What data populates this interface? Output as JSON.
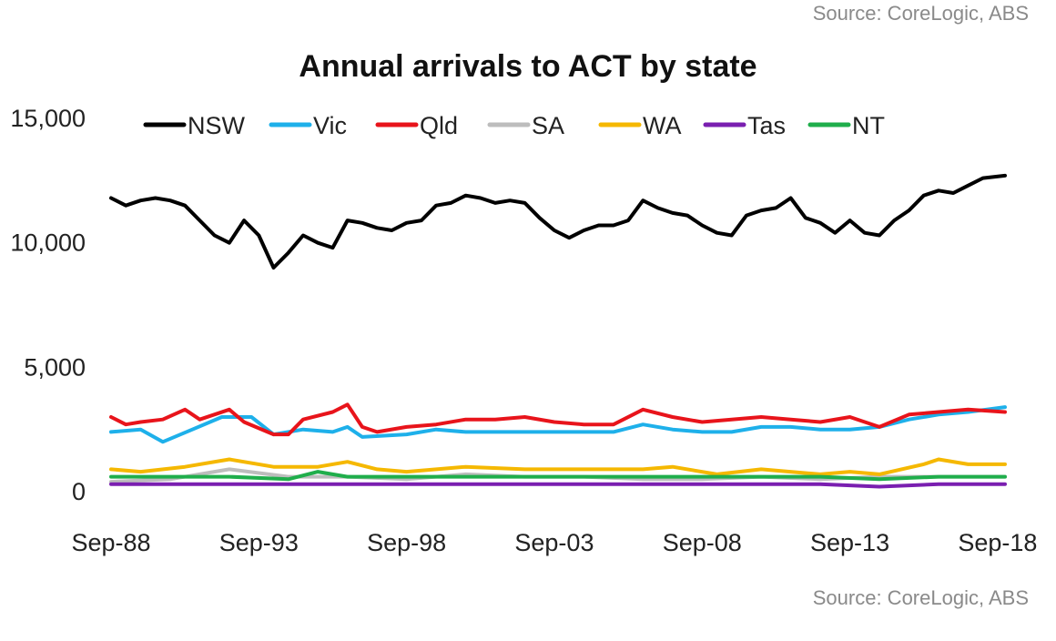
{
  "source_top": "Source: CoreLogic, ABS",
  "source_bottom": "Source: CoreLogic, ABS",
  "chart_data": {
    "type": "line",
    "title": "Annual arrivals to ACT by state",
    "xlabel": "",
    "ylabel": "",
    "ylim": [
      0,
      15000
    ],
    "yticks": [
      0,
      5000,
      10000,
      15000
    ],
    "ytick_labels": [
      "0",
      "5,000",
      "10,000",
      "15,000"
    ],
    "xlim": [
      "1988-09",
      "2018-12"
    ],
    "xticks": [
      "1988-09",
      "1993-09",
      "1998-09",
      "2003-09",
      "2008-09",
      "2013-09",
      "2018-09"
    ],
    "xtick_labels": [
      "Sep-88",
      "Sep-93",
      "Sep-98",
      "Sep-03",
      "Sep-08",
      "Sep-13",
      "Sep-18"
    ],
    "grid": false,
    "legend": "top",
    "series": [
      {
        "name": "NSW",
        "color": "#000000",
        "width": 4,
        "points": [
          [
            "1988-09",
            11800
          ],
          [
            "1989-03",
            11500
          ],
          [
            "1989-09",
            11700
          ],
          [
            "1990-03",
            11800
          ],
          [
            "1990-09",
            11700
          ],
          [
            "1991-03",
            11500
          ],
          [
            "1991-09",
            10900
          ],
          [
            "1992-03",
            10300
          ],
          [
            "1992-09",
            10000
          ],
          [
            "1993-03",
            10900
          ],
          [
            "1993-09",
            10300
          ],
          [
            "1994-03",
            9000
          ],
          [
            "1994-09",
            9600
          ],
          [
            "1995-03",
            10300
          ],
          [
            "1995-09",
            10000
          ],
          [
            "1996-03",
            9800
          ],
          [
            "1996-09",
            10900
          ],
          [
            "1997-03",
            10800
          ],
          [
            "1997-09",
            10600
          ],
          [
            "1998-03",
            10500
          ],
          [
            "1998-09",
            10800
          ],
          [
            "1999-03",
            10900
          ],
          [
            "1999-09",
            11500
          ],
          [
            "2000-03",
            11600
          ],
          [
            "2000-09",
            11900
          ],
          [
            "2001-03",
            11800
          ],
          [
            "2001-09",
            11600
          ],
          [
            "2002-03",
            11700
          ],
          [
            "2002-09",
            11600
          ],
          [
            "2003-03",
            11000
          ],
          [
            "2003-09",
            10500
          ],
          [
            "2004-03",
            10200
          ],
          [
            "2004-09",
            10500
          ],
          [
            "2005-03",
            10700
          ],
          [
            "2005-09",
            10700
          ],
          [
            "2006-03",
            10900
          ],
          [
            "2006-09",
            11700
          ],
          [
            "2007-03",
            11400
          ],
          [
            "2007-09",
            11200
          ],
          [
            "2008-03",
            11100
          ],
          [
            "2008-09",
            10700
          ],
          [
            "2009-03",
            10400
          ],
          [
            "2009-09",
            10300
          ],
          [
            "2010-03",
            11100
          ],
          [
            "2010-09",
            11300
          ],
          [
            "2011-03",
            11400
          ],
          [
            "2011-09",
            11800
          ],
          [
            "2012-03",
            11000
          ],
          [
            "2012-09",
            10800
          ],
          [
            "2013-03",
            10400
          ],
          [
            "2013-09",
            10900
          ],
          [
            "2014-03",
            10400
          ],
          [
            "2014-09",
            10300
          ],
          [
            "2015-03",
            10900
          ],
          [
            "2015-09",
            11300
          ],
          [
            "2016-03",
            11900
          ],
          [
            "2016-09",
            12100
          ],
          [
            "2017-03",
            12000
          ],
          [
            "2017-09",
            12300
          ],
          [
            "2018-03",
            12600
          ],
          [
            "2018-12",
            12700
          ]
        ]
      },
      {
        "name": "Vic",
        "color": "#1eb0ea",
        "width": 4,
        "points": [
          [
            "1988-09",
            2400
          ],
          [
            "1989-09",
            2500
          ],
          [
            "1990-06",
            2000
          ],
          [
            "1991-06",
            2500
          ],
          [
            "1992-06",
            3000
          ],
          [
            "1993-06",
            3000
          ],
          [
            "1994-03",
            2300
          ],
          [
            "1995-03",
            2500
          ],
          [
            "1996-03",
            2400
          ],
          [
            "1996-09",
            2600
          ],
          [
            "1997-03",
            2200
          ],
          [
            "1998-09",
            2300
          ],
          [
            "1999-09",
            2500
          ],
          [
            "2000-09",
            2400
          ],
          [
            "2001-09",
            2400
          ],
          [
            "2003-09",
            2400
          ],
          [
            "2005-09",
            2400
          ],
          [
            "2006-09",
            2700
          ],
          [
            "2007-09",
            2500
          ],
          [
            "2008-09",
            2400
          ],
          [
            "2009-09",
            2400
          ],
          [
            "2010-09",
            2600
          ],
          [
            "2011-09",
            2600
          ],
          [
            "2012-09",
            2500
          ],
          [
            "2013-09",
            2500
          ],
          [
            "2014-09",
            2600
          ],
          [
            "2015-09",
            2900
          ],
          [
            "2016-09",
            3100
          ],
          [
            "2017-09",
            3200
          ],
          [
            "2018-12",
            3400
          ]
        ]
      },
      {
        "name": "Qld",
        "color": "#e8141b",
        "width": 4,
        "points": [
          [
            "1988-09",
            3000
          ],
          [
            "1989-03",
            2700
          ],
          [
            "1989-09",
            2800
          ],
          [
            "1990-06",
            2900
          ],
          [
            "1991-03",
            3300
          ],
          [
            "1991-09",
            2900
          ],
          [
            "1992-09",
            3300
          ],
          [
            "1993-03",
            2800
          ],
          [
            "1994-03",
            2300
          ],
          [
            "1994-09",
            2300
          ],
          [
            "1995-03",
            2900
          ],
          [
            "1996-03",
            3200
          ],
          [
            "1996-09",
            3500
          ],
          [
            "1997-03",
            2600
          ],
          [
            "1997-09",
            2400
          ],
          [
            "1998-09",
            2600
          ],
          [
            "1999-09",
            2700
          ],
          [
            "2000-09",
            2900
          ],
          [
            "2001-09",
            2900
          ],
          [
            "2002-09",
            3000
          ],
          [
            "2003-09",
            2800
          ],
          [
            "2004-09",
            2700
          ],
          [
            "2005-09",
            2700
          ],
          [
            "2006-09",
            3300
          ],
          [
            "2007-09",
            3000
          ],
          [
            "2008-09",
            2800
          ],
          [
            "2009-09",
            2900
          ],
          [
            "2010-09",
            3000
          ],
          [
            "2011-09",
            2900
          ],
          [
            "2012-09",
            2800
          ],
          [
            "2013-09",
            3000
          ],
          [
            "2014-09",
            2600
          ],
          [
            "2015-09",
            3100
          ],
          [
            "2016-09",
            3200
          ],
          [
            "2017-09",
            3300
          ],
          [
            "2018-12",
            3200
          ]
        ]
      },
      {
        "name": "SA",
        "color": "#bdbdbd",
        "width": 4,
        "points": [
          [
            "1988-09",
            400
          ],
          [
            "1990-09",
            500
          ],
          [
            "1992-09",
            900
          ],
          [
            "1994-09",
            600
          ],
          [
            "1996-09",
            600
          ],
          [
            "1998-09",
            500
          ],
          [
            "2000-09",
            700
          ],
          [
            "2002-09",
            600
          ],
          [
            "2004-09",
            600
          ],
          [
            "2006-09",
            500
          ],
          [
            "2008-09",
            500
          ],
          [
            "2010-09",
            600
          ],
          [
            "2012-09",
            500
          ],
          [
            "2014-09",
            600
          ],
          [
            "2016-09",
            600
          ],
          [
            "2018-12",
            600
          ]
        ]
      },
      {
        "name": "WA",
        "color": "#f5b800",
        "width": 4,
        "points": [
          [
            "1988-09",
            900
          ],
          [
            "1989-09",
            800
          ],
          [
            "1991-03",
            1000
          ],
          [
            "1992-09",
            1300
          ],
          [
            "1994-03",
            1000
          ],
          [
            "1995-09",
            1000
          ],
          [
            "1996-09",
            1200
          ],
          [
            "1997-09",
            900
          ],
          [
            "1998-09",
            800
          ],
          [
            "2000-09",
            1000
          ],
          [
            "2002-09",
            900
          ],
          [
            "2004-09",
            900
          ],
          [
            "2006-09",
            900
          ],
          [
            "2007-09",
            1000
          ],
          [
            "2009-03",
            700
          ],
          [
            "2010-09",
            900
          ],
          [
            "2012-09",
            700
          ],
          [
            "2013-09",
            800
          ],
          [
            "2014-09",
            700
          ],
          [
            "2016-03",
            1100
          ],
          [
            "2016-09",
            1300
          ],
          [
            "2017-09",
            1100
          ],
          [
            "2018-12",
            1100
          ]
        ]
      },
      {
        "name": "Tas",
        "color": "#7a1fb0",
        "width": 4,
        "points": [
          [
            "1988-09",
            300
          ],
          [
            "1990-09",
            300
          ],
          [
            "1992-09",
            300
          ],
          [
            "1994-09",
            300
          ],
          [
            "1996-09",
            300
          ],
          [
            "1998-09",
            300
          ],
          [
            "2000-09",
            300
          ],
          [
            "2002-09",
            300
          ],
          [
            "2004-09",
            300
          ],
          [
            "2006-09",
            300
          ],
          [
            "2008-09",
            300
          ],
          [
            "2010-09",
            300
          ],
          [
            "2012-09",
            300
          ],
          [
            "2014-09",
            200
          ],
          [
            "2016-09",
            300
          ],
          [
            "2018-12",
            300
          ]
        ]
      },
      {
        "name": "NT",
        "color": "#1fae4b",
        "width": 4,
        "points": [
          [
            "1988-09",
            600
          ],
          [
            "1990-09",
            600
          ],
          [
            "1992-09",
            600
          ],
          [
            "1994-09",
            500
          ],
          [
            "1995-09",
            800
          ],
          [
            "1996-09",
            600
          ],
          [
            "1998-09",
            600
          ],
          [
            "2000-09",
            600
          ],
          [
            "2002-09",
            600
          ],
          [
            "2004-09",
            600
          ],
          [
            "2006-09",
            600
          ],
          [
            "2008-09",
            600
          ],
          [
            "2010-09",
            600
          ],
          [
            "2012-09",
            600
          ],
          [
            "2014-09",
            500
          ],
          [
            "2016-09",
            600
          ],
          [
            "2018-12",
            600
          ]
        ]
      }
    ]
  }
}
